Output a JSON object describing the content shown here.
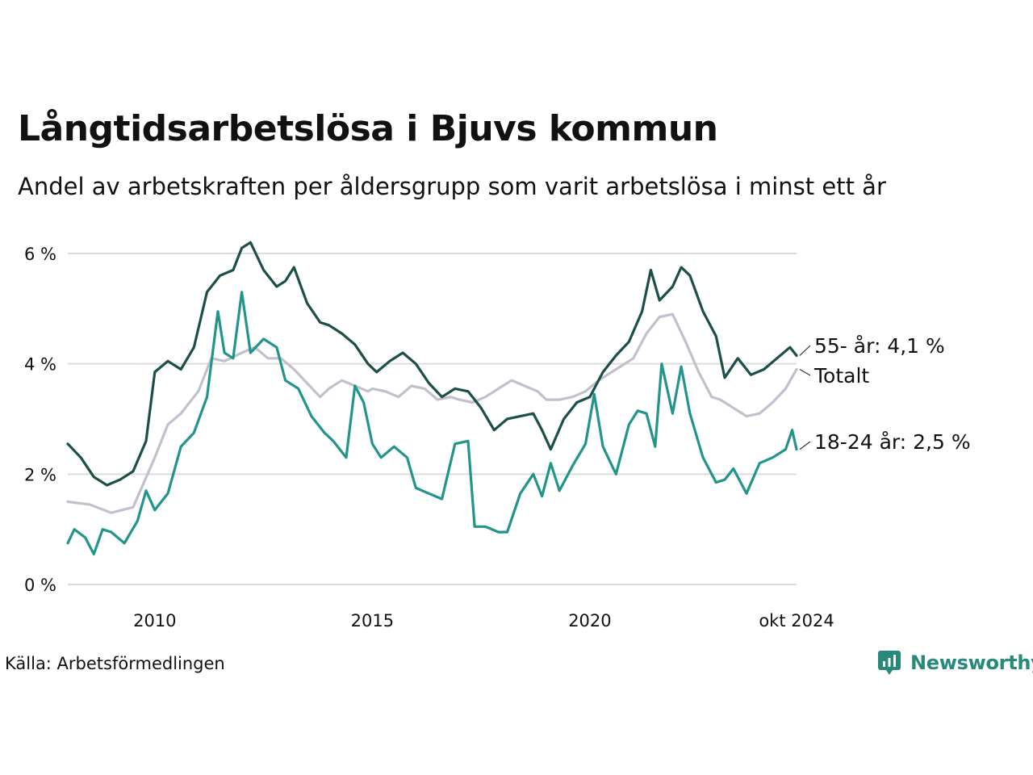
{
  "header": {
    "title": "Långtidsarbetslösa i Bjuvs kommun",
    "subtitle": "Andel av arbetskraften per åldersgrupp som varit arbetslösa i minst ett år"
  },
  "footer": {
    "source": "Källa: Arbetsförmedlingen",
    "brand": "Newsworthy",
    "brand_icon": "bar-chart-speech-bubble-icon",
    "brand_color": "#27897a"
  },
  "chart_data": {
    "type": "line",
    "x_start": "2008-01",
    "x_end": "2024-10",
    "ylim": [
      0,
      6.3
    ],
    "y_ticks": [
      0,
      2,
      4,
      6
    ],
    "y_tick_labels": [
      "0 %",
      "2 %",
      "4 %",
      "6 %"
    ],
    "x_ticks": [
      "2010-01",
      "2015-01",
      "2020-01",
      "2024-10"
    ],
    "x_tick_labels": [
      "2010",
      "2015",
      "2020",
      "okt 2024"
    ],
    "grid": "horizontal",
    "legend": "direct labels at line ends (right)",
    "series": [
      {
        "name": "Totalt",
        "label": "Totalt",
        "color": "#c2c0cc",
        "values": [
          [
            2008.0,
            1.5
          ],
          [
            2008.5,
            1.45
          ],
          [
            2009.0,
            1.3
          ],
          [
            2009.5,
            1.4
          ],
          [
            2010.0,
            2.3
          ],
          [
            2010.3,
            2.9
          ],
          [
            2010.6,
            3.1
          ],
          [
            2011.0,
            3.5
          ],
          [
            2011.3,
            4.1
          ],
          [
            2011.6,
            4.05
          ],
          [
            2012.0,
            4.2
          ],
          [
            2012.3,
            4.3
          ],
          [
            2012.6,
            4.1
          ],
          [
            2012.9,
            4.1
          ],
          [
            2013.2,
            3.9
          ],
          [
            2013.5,
            3.65
          ],
          [
            2013.8,
            3.4
          ],
          [
            2014.0,
            3.55
          ],
          [
            2014.3,
            3.7
          ],
          [
            2014.6,
            3.6
          ],
          [
            2014.9,
            3.5
          ],
          [
            2015.0,
            3.55
          ],
          [
            2015.3,
            3.5
          ],
          [
            2015.6,
            3.4
          ],
          [
            2015.9,
            3.6
          ],
          [
            2016.2,
            3.55
          ],
          [
            2016.5,
            3.35
          ],
          [
            2016.8,
            3.4
          ],
          [
            2017.0,
            3.35
          ],
          [
            2017.3,
            3.3
          ],
          [
            2017.6,
            3.4
          ],
          [
            2017.9,
            3.55
          ],
          [
            2018.2,
            3.7
          ],
          [
            2018.5,
            3.6
          ],
          [
            2018.8,
            3.5
          ],
          [
            2019.0,
            3.35
          ],
          [
            2019.3,
            3.35
          ],
          [
            2019.6,
            3.4
          ],
          [
            2019.9,
            3.5
          ],
          [
            2020.2,
            3.7
          ],
          [
            2020.5,
            3.85
          ],
          [
            2020.8,
            4.0
          ],
          [
            2021.0,
            4.1
          ],
          [
            2021.3,
            4.55
          ],
          [
            2021.6,
            4.85
          ],
          [
            2021.9,
            4.9
          ],
          [
            2022.2,
            4.4
          ],
          [
            2022.5,
            3.85
          ],
          [
            2022.8,
            3.4
          ],
          [
            2023.0,
            3.35
          ],
          [
            2023.3,
            3.2
          ],
          [
            2023.6,
            3.05
          ],
          [
            2023.9,
            3.1
          ],
          [
            2024.2,
            3.3
          ],
          [
            2024.5,
            3.55
          ],
          [
            2024.75,
            3.9
          ]
        ]
      },
      {
        "name": "55- år",
        "label": "55- år: 4,1 %",
        "color": "#1c4f48",
        "values": [
          [
            2008.0,
            2.55
          ],
          [
            2008.3,
            2.3
          ],
          [
            2008.6,
            1.95
          ],
          [
            2008.9,
            1.8
          ],
          [
            2009.2,
            1.9
          ],
          [
            2009.5,
            2.05
          ],
          [
            2009.8,
            2.6
          ],
          [
            2010.0,
            3.85
          ],
          [
            2010.3,
            4.05
          ],
          [
            2010.6,
            3.9
          ],
          [
            2010.9,
            4.3
          ],
          [
            2011.2,
            5.3
          ],
          [
            2011.5,
            5.6
          ],
          [
            2011.8,
            5.7
          ],
          [
            2012.0,
            6.1
          ],
          [
            2012.2,
            6.2
          ],
          [
            2012.5,
            5.7
          ],
          [
            2012.8,
            5.4
          ],
          [
            2013.0,
            5.5
          ],
          [
            2013.2,
            5.75
          ],
          [
            2013.5,
            5.1
          ],
          [
            2013.8,
            4.75
          ],
          [
            2014.0,
            4.7
          ],
          [
            2014.3,
            4.55
          ],
          [
            2014.6,
            4.35
          ],
          [
            2014.9,
            4.0
          ],
          [
            2015.1,
            3.85
          ],
          [
            2015.4,
            4.05
          ],
          [
            2015.7,
            4.2
          ],
          [
            2016.0,
            4.0
          ],
          [
            2016.3,
            3.65
          ],
          [
            2016.6,
            3.4
          ],
          [
            2016.9,
            3.55
          ],
          [
            2017.2,
            3.5
          ],
          [
            2017.5,
            3.2
          ],
          [
            2017.8,
            2.8
          ],
          [
            2018.1,
            3.0
          ],
          [
            2018.4,
            3.05
          ],
          [
            2018.7,
            3.1
          ],
          [
            2018.9,
            2.8
          ],
          [
            2019.1,
            2.45
          ],
          [
            2019.4,
            3.0
          ],
          [
            2019.7,
            3.3
          ],
          [
            2020.0,
            3.4
          ],
          [
            2020.3,
            3.85
          ],
          [
            2020.6,
            4.15
          ],
          [
            2020.9,
            4.4
          ],
          [
            2021.2,
            4.95
          ],
          [
            2021.4,
            5.7
          ],
          [
            2021.6,
            5.15
          ],
          [
            2021.9,
            5.4
          ],
          [
            2022.1,
            5.75
          ],
          [
            2022.3,
            5.6
          ],
          [
            2022.6,
            4.95
          ],
          [
            2022.9,
            4.5
          ],
          [
            2023.1,
            3.75
          ],
          [
            2023.4,
            4.1
          ],
          [
            2023.7,
            3.8
          ],
          [
            2024.0,
            3.9
          ],
          [
            2024.3,
            4.1
          ],
          [
            2024.6,
            4.3
          ],
          [
            2024.75,
            4.15
          ]
        ]
      },
      {
        "name": "18-24 år",
        "label": "18-24 år: 2,5 %",
        "color": "#22958a",
        "values": [
          [
            2008.0,
            0.75
          ],
          [
            2008.15,
            1.0
          ],
          [
            2008.4,
            0.85
          ],
          [
            2008.6,
            0.55
          ],
          [
            2008.8,
            1.0
          ],
          [
            2009.0,
            0.95
          ],
          [
            2009.3,
            0.75
          ],
          [
            2009.6,
            1.15
          ],
          [
            2009.8,
            1.7
          ],
          [
            2010.0,
            1.35
          ],
          [
            2010.3,
            1.65
          ],
          [
            2010.6,
            2.5
          ],
          [
            2010.9,
            2.75
          ],
          [
            2011.2,
            3.4
          ],
          [
            2011.45,
            4.95
          ],
          [
            2011.6,
            4.2
          ],
          [
            2011.8,
            4.1
          ],
          [
            2012.0,
            5.3
          ],
          [
            2012.2,
            4.2
          ],
          [
            2012.5,
            4.45
          ],
          [
            2012.8,
            4.3
          ],
          [
            2013.0,
            3.7
          ],
          [
            2013.3,
            3.55
          ],
          [
            2013.6,
            3.05
          ],
          [
            2013.9,
            2.75
          ],
          [
            2014.1,
            2.6
          ],
          [
            2014.4,
            2.3
          ],
          [
            2014.6,
            3.6
          ],
          [
            2014.8,
            3.3
          ],
          [
            2015.0,
            2.55
          ],
          [
            2015.2,
            2.3
          ],
          [
            2015.5,
            2.5
          ],
          [
            2015.8,
            2.3
          ],
          [
            2016.0,
            1.75
          ],
          [
            2016.3,
            1.65
          ],
          [
            2016.6,
            1.55
          ],
          [
            2016.9,
            2.55
          ],
          [
            2017.2,
            2.6
          ],
          [
            2017.35,
            1.05
          ],
          [
            2017.6,
            1.05
          ],
          [
            2017.9,
            0.95
          ],
          [
            2018.1,
            0.95
          ],
          [
            2018.4,
            1.65
          ],
          [
            2018.7,
            2.0
          ],
          [
            2018.9,
            1.6
          ],
          [
            2019.1,
            2.2
          ],
          [
            2019.3,
            1.7
          ],
          [
            2019.6,
            2.15
          ],
          [
            2019.9,
            2.55
          ],
          [
            2020.1,
            3.45
          ],
          [
            2020.3,
            2.5
          ],
          [
            2020.6,
            2.0
          ],
          [
            2020.9,
            2.9
          ],
          [
            2021.1,
            3.15
          ],
          [
            2021.3,
            3.1
          ],
          [
            2021.5,
            2.5
          ],
          [
            2021.65,
            4.0
          ],
          [
            2021.9,
            3.1
          ],
          [
            2022.1,
            3.95
          ],
          [
            2022.3,
            3.1
          ],
          [
            2022.6,
            2.3
          ],
          [
            2022.9,
            1.85
          ],
          [
            2023.1,
            1.9
          ],
          [
            2023.3,
            2.1
          ],
          [
            2023.6,
            1.65
          ],
          [
            2023.9,
            2.2
          ],
          [
            2024.2,
            2.3
          ],
          [
            2024.5,
            2.45
          ],
          [
            2024.65,
            2.8
          ],
          [
            2024.75,
            2.45
          ]
        ]
      }
    ]
  }
}
